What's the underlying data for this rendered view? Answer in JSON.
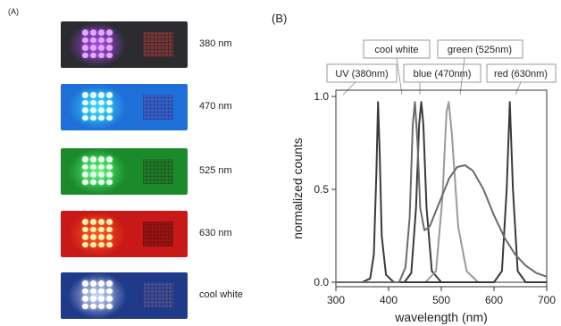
{
  "panel_a": {
    "label": "(A)",
    "photos": [
      {
        "label": "380 nm",
        "bg": "#2b2b30",
        "led": "#e8a8ff",
        "glow": "#b050ff",
        "pcb": "#b04040"
      },
      {
        "label": "470 nm",
        "bg": "#1e6fd8",
        "led": "#e8ffff",
        "glow": "#40e0ff",
        "pcb": "#5050c0"
      },
      {
        "label": "525 nm",
        "bg": "#1a8a2a",
        "led": "#f0fff0",
        "glow": "#60ff80",
        "pcb": "#2a6a2a"
      },
      {
        "label": "630 nm",
        "bg": "#c81818",
        "led": "#fff2b0",
        "glow": "#ff6020",
        "pcb": "#701010"
      },
      {
        "label": "cool white",
        "bg": "#203a8a",
        "led": "#ffffff",
        "glow": "#d8e4ff",
        "pcb": "#6060a0"
      }
    ]
  },
  "panel_b": {
    "label": "(B)",
    "legend": {
      "cool_white": "cool white",
      "green": "green (525nm)",
      "uv": "UV (380nm)",
      "blue": "blue (470nm)",
      "red": "red (630nm)"
    }
  },
  "chart_data": {
    "type": "line",
    "xlabel": "wavelength (nm)",
    "ylabel": "normalized counts",
    "xlim": [
      300,
      700
    ],
    "ylim": [
      0,
      1.0
    ],
    "x_ticks": [
      "300",
      "400",
      "500",
      "600",
      "700"
    ],
    "y_ticks": [
      "0.0",
      "0.5",
      "1.0"
    ],
    "series": [
      {
        "name": "UV (380nm)",
        "color": "#3a3a3a",
        "points": [
          [
            300,
            0.0
          ],
          [
            350,
            0.0
          ],
          [
            365,
            0.02
          ],
          [
            372,
            0.15
          ],
          [
            377,
            0.6
          ],
          [
            380,
            0.97
          ],
          [
            383,
            0.7
          ],
          [
            387,
            0.25
          ],
          [
            395,
            0.04
          ],
          [
            410,
            0.0
          ],
          [
            700,
            0.0
          ]
        ]
      },
      {
        "name": "blue (470nm)",
        "color": "#3a3a3a",
        "points": [
          [
            300,
            0.0
          ],
          [
            430,
            0.0
          ],
          [
            443,
            0.05
          ],
          [
            452,
            0.4
          ],
          [
            458,
            0.85
          ],
          [
            462,
            0.97
          ],
          [
            466,
            0.85
          ],
          [
            472,
            0.4
          ],
          [
            482,
            0.06
          ],
          [
            500,
            0.0
          ],
          [
            700,
            0.0
          ]
        ]
      },
      {
        "name": "green (525nm)",
        "color": "#9a9a9a",
        "points": [
          [
            300,
            0.0
          ],
          [
            470,
            0.0
          ],
          [
            490,
            0.06
          ],
          [
            502,
            0.45
          ],
          [
            510,
            0.92
          ],
          [
            514,
            0.97
          ],
          [
            520,
            0.8
          ],
          [
            532,
            0.3
          ],
          [
            548,
            0.06
          ],
          [
            570,
            0.0
          ],
          [
            700,
            0.0
          ]
        ]
      },
      {
        "name": "red (630nm)",
        "color": "#3a3a3a",
        "points": [
          [
            300,
            0.0
          ],
          [
            600,
            0.0
          ],
          [
            615,
            0.06
          ],
          [
            624,
            0.5
          ],
          [
            630,
            0.97
          ],
          [
            636,
            0.5
          ],
          [
            645,
            0.06
          ],
          [
            660,
            0.0
          ],
          [
            700,
            0.0
          ]
        ]
      },
      {
        "name": "cool white",
        "color": "#6a6a6a",
        "points": [
          [
            300,
            0.0
          ],
          [
            420,
            0.0
          ],
          [
            432,
            0.08
          ],
          [
            440,
            0.35
          ],
          [
            446,
            0.85
          ],
          [
            450,
            0.97
          ],
          [
            455,
            0.75
          ],
          [
            460,
            0.4
          ],
          [
            468,
            0.28
          ],
          [
            478,
            0.3
          ],
          [
            495,
            0.42
          ],
          [
            515,
            0.56
          ],
          [
            530,
            0.62
          ],
          [
            545,
            0.63
          ],
          [
            560,
            0.6
          ],
          [
            580,
            0.5
          ],
          [
            600,
            0.36
          ],
          [
            620,
            0.24
          ],
          [
            640,
            0.15
          ],
          [
            660,
            0.09
          ],
          [
            680,
            0.05
          ],
          [
            700,
            0.03
          ]
        ]
      }
    ]
  }
}
